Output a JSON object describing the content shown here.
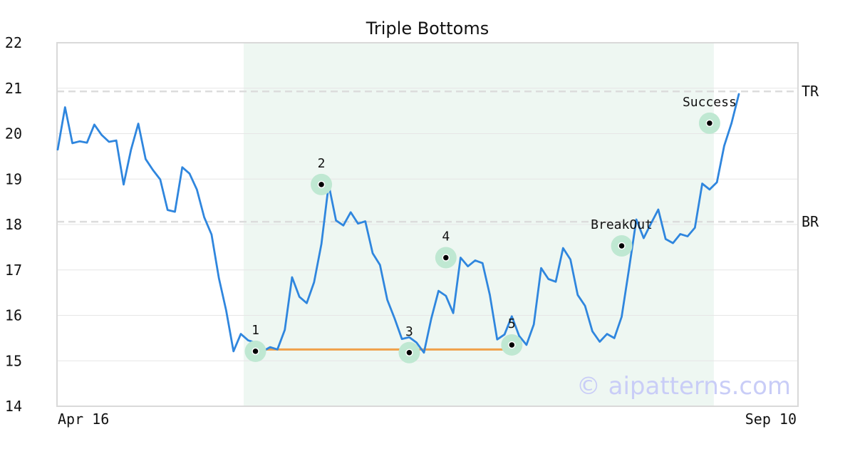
{
  "chart_data": {
    "type": "line",
    "title": "Triple Bottoms",
    "ylim": [
      14,
      22
    ],
    "y_ticks": [
      14,
      15,
      16,
      17,
      18,
      19,
      20,
      21,
      22
    ],
    "x_tick_labels": [
      "Apr 16",
      "Sep 10"
    ],
    "grid": true,
    "watermark": "© aipatterns.com",
    "colors": {
      "line": "#2f86de",
      "support": "#f0a04a",
      "highlight": "#eef7f2",
      "marker_halo": "#bfe8d2",
      "level": "#dcdcdc"
    },
    "series": [
      {
        "values": [
          19.65,
          20.58,
          19.79,
          19.83,
          19.8,
          20.2,
          19.97,
          19.82,
          19.85,
          18.88,
          19.64,
          20.22,
          19.44,
          19.2,
          18.99,
          18.32,
          18.28,
          19.26,
          19.12,
          18.77,
          18.16,
          17.78,
          16.82,
          16.11,
          15.21,
          15.59,
          15.45,
          15.4,
          15.21,
          15.3,
          15.25,
          15.68,
          16.84,
          16.41,
          16.27,
          16.73,
          17.57,
          18.88,
          18.09,
          17.98,
          18.27,
          18.02,
          18.07,
          17.37,
          17.11,
          16.34,
          15.93,
          15.48,
          15.52,
          15.4,
          15.18,
          15.93,
          16.54,
          16.43,
          16.05,
          17.27,
          17.08,
          17.21,
          17.15,
          16.45,
          15.47,
          15.58,
          15.98,
          15.55,
          15.35,
          15.8,
          17.04,
          16.8,
          16.74,
          17.48,
          17.23,
          16.45,
          16.21,
          15.65,
          15.42,
          15.59,
          15.5,
          15.97,
          17.02,
          18.11,
          17.7,
          18.02,
          18.33,
          17.68,
          17.59,
          17.79,
          17.74,
          17.93,
          18.9,
          18.77,
          18.93,
          19.73,
          20.23,
          20.87
        ]
      }
    ],
    "highlight_range": {
      "start_index": 25,
      "end_index": 89
    },
    "support_line": {
      "start_index": 27,
      "end_index": 62,
      "value": 15.25
    },
    "levels": [
      {
        "label": "TR",
        "value": 20.93
      },
      {
        "label": "BR",
        "value": 18.06
      }
    ],
    "annotations": [
      {
        "label": "1",
        "index": 27,
        "value": 15.21
      },
      {
        "label": "2",
        "index": 36,
        "value": 18.88
      },
      {
        "label": "3",
        "index": 48,
        "value": 15.18
      },
      {
        "label": "4",
        "index": 53,
        "value": 17.27
      },
      {
        "label": "5",
        "index": 62,
        "value": 15.35
      },
      {
        "label": "BreakOut",
        "index": 77,
        "value": 17.53
      },
      {
        "label": "Success",
        "index": 89,
        "value": 20.23
      }
    ]
  }
}
